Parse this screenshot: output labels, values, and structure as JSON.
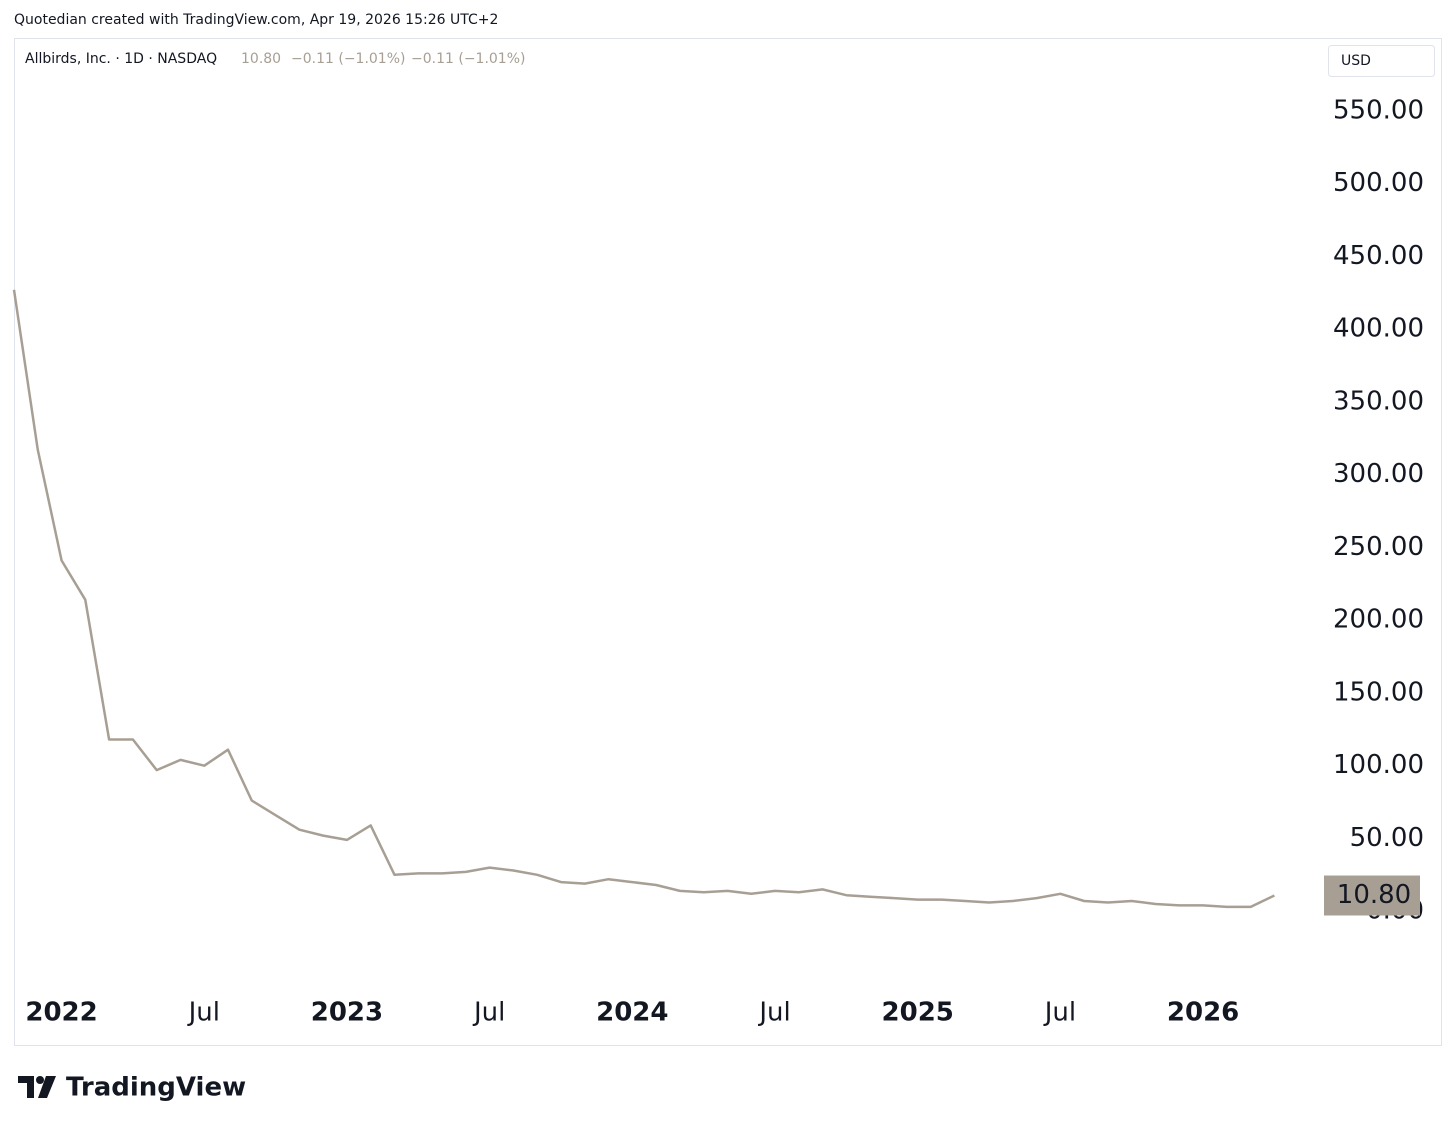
{
  "chart_data": {
    "type": "line",
    "caption": "Quotedian created with TradingView.com, Apr 19, 2026 15:26 UTC+2",
    "legend_text": "Allbirds, Inc. · 1D · NASDAQ",
    "last": "10.80",
    "change": "−0.11 (−1.01%)",
    "currency": "USD",
    "brand": "TradingView",
    "color": "#a89f94",
    "x": [
      "2021-11",
      "2021-12",
      "2022-01",
      "2022-02",
      "2022-03",
      "2022-04",
      "2022-05",
      "2022-06",
      "2022-07",
      "2022-08",
      "2022-09",
      "2022-10",
      "2022-11",
      "2022-12",
      "2023-01",
      "2023-02",
      "2023-03",
      "2023-04",
      "2023-05",
      "2023-06",
      "2023-07",
      "2023-08",
      "2023-09",
      "2023-10",
      "2023-11",
      "2023-12",
      "2024-01",
      "2024-02",
      "2024-03",
      "2024-04",
      "2024-05",
      "2024-06",
      "2024-07",
      "2024-08",
      "2024-09",
      "2024-10",
      "2024-11",
      "2024-12",
      "2025-01",
      "2025-02",
      "2025-03",
      "2025-04",
      "2025-05",
      "2025-06",
      "2025-07",
      "2025-08",
      "2025-09",
      "2025-10",
      "2025-11",
      "2025-12",
      "2026-01",
      "2026-02",
      "2026-03",
      "2026-04"
    ],
    "values": [
      427,
      317,
      241,
      214,
      118,
      118,
      97,
      104,
      100,
      111,
      76,
      66,
      56,
      52,
      49,
      59,
      25,
      26,
      26,
      27,
      30,
      28,
      25,
      20,
      19,
      22,
      20,
      18,
      14,
      13,
      14,
      12,
      14,
      13,
      15,
      11,
      10,
      9,
      8,
      8,
      7,
      6,
      7,
      9,
      12,
      7,
      6,
      7,
      5,
      4,
      4,
      3,
      3,
      10.8
    ],
    "xlim": [
      "2021-11",
      "2026-06"
    ],
    "xticks": [
      {
        "value": "2022-01",
        "label": "2022"
      },
      {
        "value": "2022-07",
        "label": "Jul"
      },
      {
        "value": "2023-01",
        "label": "2023"
      },
      {
        "value": "2023-07",
        "label": "Jul"
      },
      {
        "value": "2024-01",
        "label": "2024"
      },
      {
        "value": "2024-07",
        "label": "Jul"
      },
      {
        "value": "2025-01",
        "label": "2025"
      },
      {
        "value": "2025-07",
        "label": "Jul"
      },
      {
        "value": "2026-01",
        "label": "2026"
      }
    ],
    "ylim": [
      -50,
      600
    ],
    "yticks": [
      {
        "value": 0,
        "label": "0.00"
      },
      {
        "value": 50,
        "label": "50.00"
      },
      {
        "value": 100,
        "label": "100.00"
      },
      {
        "value": 150,
        "label": "150.00"
      },
      {
        "value": 200,
        "label": "200.00"
      },
      {
        "value": 250,
        "label": "250.00"
      },
      {
        "value": 300,
        "label": "300.00"
      },
      {
        "value": 350,
        "label": "350.00"
      },
      {
        "value": 400,
        "label": "400.00"
      },
      {
        "value": 450,
        "label": "450.00"
      },
      {
        "value": 500,
        "label": "500.00"
      },
      {
        "value": 550,
        "label": "550.00"
      }
    ],
    "grid": false
  }
}
